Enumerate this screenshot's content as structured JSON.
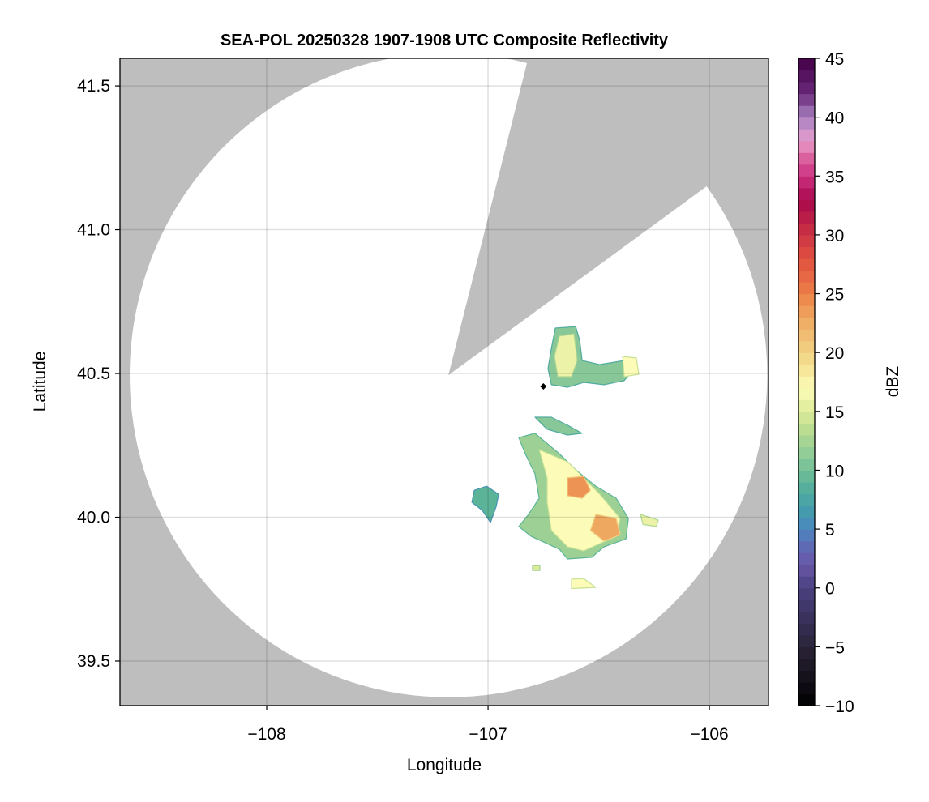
{
  "chart_data": {
    "type": "heatmap",
    "title": "SEA-POL 20250328 1907-1908 UTC Composite Reflectivity",
    "xlabel": "Longitude",
    "ylabel": "Latitude",
    "xlim": [
      -108.663,
      -105.733
    ],
    "ylim": [
      39.345,
      41.596
    ],
    "xticks": [
      -108,
      -107,
      -106
    ],
    "xtick_labels": [
      "−108",
      "−107",
      "−106"
    ],
    "yticks": [
      39.5,
      40.0,
      40.5,
      41.0,
      41.5
    ],
    "ytick_labels": [
      "39.5",
      "40.0",
      "40.5",
      "41.0",
      "41.5"
    ],
    "grid": true,
    "background_color": "#bebebe",
    "coverage": {
      "center": [
        -107.179,
        40.494
      ],
      "radius_lon_deg": 1.44,
      "radius_lat_deg": 1.12,
      "color": "#ffffff",
      "blocked_sector_edges": [
        [
          -106.842,
          41.525
        ],
        [
          -106.062,
          41.123
        ]
      ]
    },
    "radar_marker": {
      "lon": -106.75,
      "lat": 40.455,
      "color": "#000000"
    },
    "echo_regions": [
      {
        "dbz": 11,
        "polygon": [
          [
            -106.696,
            40.658
          ],
          [
            -106.604,
            40.663
          ],
          [
            -106.586,
            40.615
          ],
          [
            -106.575,
            40.545
          ],
          [
            -106.495,
            40.531
          ],
          [
            -106.385,
            40.545
          ],
          [
            -106.355,
            40.503
          ],
          [
            -106.385,
            40.475
          ],
          [
            -106.476,
            40.461
          ],
          [
            -106.568,
            40.469
          ],
          [
            -106.641,
            40.452
          ],
          [
            -106.714,
            40.461
          ],
          [
            -106.729,
            40.517
          ],
          [
            -106.714,
            40.587
          ]
        ]
      },
      {
        "dbz": 16,
        "polygon": [
          [
            -106.678,
            40.63
          ],
          [
            -106.612,
            40.638
          ],
          [
            -106.597,
            40.545
          ],
          [
            -106.623,
            40.489
          ],
          [
            -106.685,
            40.489
          ],
          [
            -106.7,
            40.559
          ]
        ]
      },
      {
        "dbz": 17,
        "polygon": [
          [
            -106.392,
            40.559
          ],
          [
            -106.33,
            40.554
          ],
          [
            -106.319,
            40.497
          ],
          [
            -106.385,
            40.489
          ]
        ]
      },
      {
        "dbz": 12,
        "polygon": [
          [
            -106.861,
            40.277
          ],
          [
            -106.788,
            40.292
          ],
          [
            -106.678,
            40.221
          ],
          [
            -106.604,
            40.165
          ],
          [
            -106.513,
            40.108
          ],
          [
            -106.421,
            40.066
          ],
          [
            -106.366,
            39.996
          ],
          [
            -106.377,
            39.925
          ],
          [
            -106.476,
            39.897
          ],
          [
            -106.531,
            39.861
          ],
          [
            -106.641,
            39.855
          ],
          [
            -106.678,
            39.889
          ],
          [
            -106.806,
            39.934
          ],
          [
            -106.861,
            39.968
          ],
          [
            -106.817,
            40.01
          ],
          [
            -106.769,
            40.066
          ],
          [
            -106.788,
            40.151
          ],
          [
            -106.832,
            40.221
          ]
        ]
      },
      {
        "dbz": 17,
        "polygon": [
          [
            -106.769,
            40.235
          ],
          [
            -106.641,
            40.193
          ],
          [
            -106.495,
            40.08
          ],
          [
            -106.403,
            39.996
          ],
          [
            -106.421,
            39.934
          ],
          [
            -106.568,
            39.883
          ],
          [
            -106.641,
            39.897
          ],
          [
            -106.714,
            39.954
          ],
          [
            -106.733,
            40.052
          ],
          [
            -106.733,
            40.137
          ]
        ]
      },
      {
        "dbz": 24,
        "polygon": [
          [
            -106.641,
            40.137
          ],
          [
            -106.568,
            40.142
          ],
          [
            -106.538,
            40.094
          ],
          [
            -106.575,
            40.066
          ],
          [
            -106.641,
            40.075
          ]
        ]
      },
      {
        "dbz": 23,
        "polygon": [
          [
            -106.513,
            40.01
          ],
          [
            -106.421,
            39.996
          ],
          [
            -106.403,
            39.939
          ],
          [
            -106.476,
            39.917
          ],
          [
            -106.538,
            39.954
          ]
        ]
      },
      {
        "dbz": 9,
        "polygon": [
          [
            -107.062,
            40.094
          ],
          [
            -107.007,
            40.108
          ],
          [
            -106.952,
            40.08
          ],
          [
            -106.963,
            40.038
          ],
          [
            -106.989,
            39.982
          ],
          [
            -107.026,
            40.024
          ],
          [
            -107.073,
            40.052
          ]
        ]
      },
      {
        "dbz": 11,
        "polygon": [
          [
            -106.788,
            40.348
          ],
          [
            -106.714,
            40.348
          ],
          [
            -106.641,
            40.32
          ],
          [
            -106.575,
            40.292
          ],
          [
            -106.641,
            40.286
          ],
          [
            -106.733,
            40.306
          ]
        ]
      },
      {
        "dbz": 17,
        "polygon": [
          [
            -106.623,
            39.785
          ],
          [
            -106.568,
            39.787
          ],
          [
            -106.513,
            39.756
          ],
          [
            -106.623,
            39.752
          ]
        ]
      },
      {
        "dbz": 15,
        "polygon": [
          [
            -106.799,
            39.832
          ],
          [
            -106.766,
            39.832
          ],
          [
            -106.766,
            39.815
          ],
          [
            -106.799,
            39.815
          ]
        ]
      },
      {
        "dbz": 16,
        "polygon": [
          [
            -106.311,
            40.01
          ],
          [
            -106.231,
            39.99
          ],
          [
            -106.24,
            39.968
          ],
          [
            -106.3,
            39.975
          ]
        ]
      }
    ],
    "colorbar": {
      "label": "dBZ",
      "range": [
        -10,
        45
      ],
      "step": 1,
      "ticks": [
        -10,
        -5,
        0,
        5,
        10,
        15,
        20,
        25,
        30,
        35,
        40,
        45
      ],
      "tick_labels": [
        "−10",
        "−5",
        "0",
        "5",
        "10",
        "15",
        "20",
        "25",
        "30",
        "35",
        "40",
        "45"
      ],
      "color_stops": [
        [
          -10,
          "#000000"
        ],
        [
          -5,
          "#2a2438"
        ],
        [
          0,
          "#4a4080"
        ],
        [
          2,
          "#6a58a8"
        ],
        [
          4,
          "#5a70b8"
        ],
        [
          5,
          "#4a88c0"
        ],
        [
          7,
          "#44a0a8"
        ],
        [
          9,
          "#5cb498"
        ],
        [
          11,
          "#88c898"
        ],
        [
          13,
          "#b0d890"
        ],
        [
          15,
          "#dcea98"
        ],
        [
          17,
          "#fcfcb8"
        ],
        [
          19,
          "#f4e090"
        ],
        [
          21,
          "#f0c478"
        ],
        [
          23,
          "#eea860"
        ],
        [
          25,
          "#ec8048"
        ],
        [
          28,
          "#e05040"
        ],
        [
          30,
          "#cc3444"
        ],
        [
          33,
          "#a8084c"
        ],
        [
          35,
          "#cc3080"
        ],
        [
          37,
          "#e070a8"
        ],
        [
          38,
          "#e8a0d0"
        ],
        [
          40,
          "#a880c0"
        ],
        [
          42,
          "#6a2a7a"
        ],
        [
          45,
          "#440048"
        ]
      ]
    }
  }
}
